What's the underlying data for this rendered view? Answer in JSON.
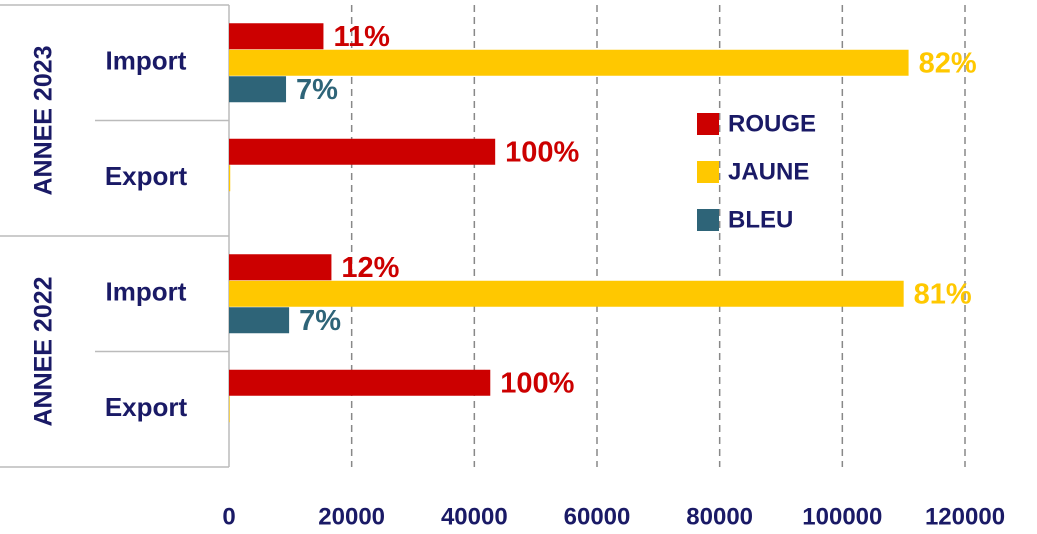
{
  "chart_data": {
    "type": "bar",
    "orientation": "horizontal",
    "groups": [
      {
        "name": "ANNEE 2023",
        "categories": [
          "Import",
          "Export"
        ]
      },
      {
        "name": "ANNEE 2022",
        "categories": [
          "Import",
          "Export"
        ]
      }
    ],
    "series": [
      {
        "name": "ROUGE",
        "color": "#cc0000",
        "values": [
          15400,
          43400,
          16700,
          42600
        ],
        "value_labels": [
          "11%",
          "100%",
          "12%",
          "100%"
        ]
      },
      {
        "name": "JAUNE",
        "color": "#ffc800",
        "values": [
          110800,
          200,
          110000,
          100
        ],
        "value_labels": [
          "82%",
          null,
          "81%",
          null
        ]
      },
      {
        "name": "BLEU",
        "color": "#2e6478",
        "values": [
          9300,
          0,
          9800,
          0
        ],
        "value_labels": [
          "7%",
          null,
          "7%",
          null
        ]
      }
    ],
    "xlim": [
      0,
      120000
    ],
    "xticks": [
      0,
      20000,
      40000,
      60000,
      80000,
      100000,
      120000
    ],
    "grid": true,
    "legend": "center"
  }
}
